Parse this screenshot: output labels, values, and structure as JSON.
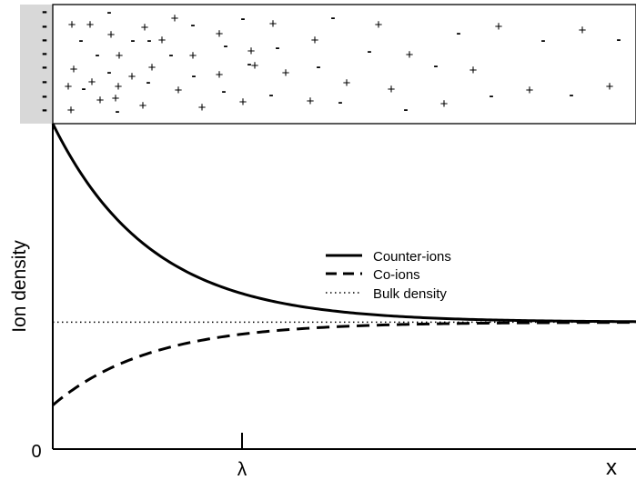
{
  "chart_data": {
    "type": "line",
    "ylabel": "Ion density",
    "xlabel": "x",
    "y_origin_label": "0",
    "x_marker_label": "λ",
    "legend": {
      "placement": "center-right",
      "entries": [
        {
          "label": "Counter-ions",
          "style": "solid"
        },
        {
          "label": "Co-ions",
          "style": "dashed"
        },
        {
          "label": "Bulk density",
          "style": "dotted"
        }
      ]
    },
    "model": {
      "bulk_density": 0.39,
      "counter_ion_surface_density": 1.0,
      "co_ion_surface_density": 0.135,
      "decay_length_lambda": 1,
      "x_range": [
        0,
        3.06
      ],
      "y_range": [
        0,
        1.0
      ]
    },
    "surface_label": "-",
    "ion_labels": {
      "cation": "+",
      "anion": "-"
    }
  }
}
